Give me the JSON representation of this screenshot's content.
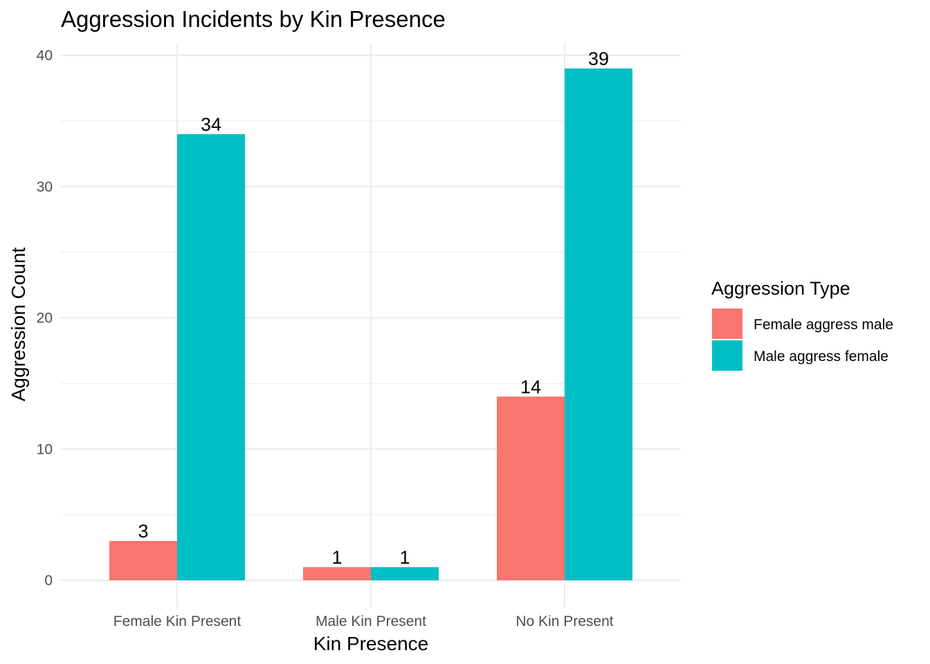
{
  "chart_data": {
    "type": "bar",
    "title": "Aggression Incidents by Kin Presence",
    "xlabel": "Kin Presence",
    "ylabel": "Aggression Count",
    "categories": [
      "Female Kin Present",
      "Male Kin Present",
      "No Kin Present"
    ],
    "series": [
      {
        "name": "Female aggress male",
        "values": [
          3,
          1,
          14
        ],
        "color": "#F8766D"
      },
      {
        "name": "Male aggress female",
        "values": [
          34,
          1,
          39
        ],
        "color": "#00BFC4"
      }
    ],
    "ylim": [
      0,
      40
    ],
    "yticks": [
      0,
      10,
      20,
      30,
      40
    ],
    "legend": {
      "title": "Aggression Type",
      "position": "right"
    },
    "grid": true
  }
}
